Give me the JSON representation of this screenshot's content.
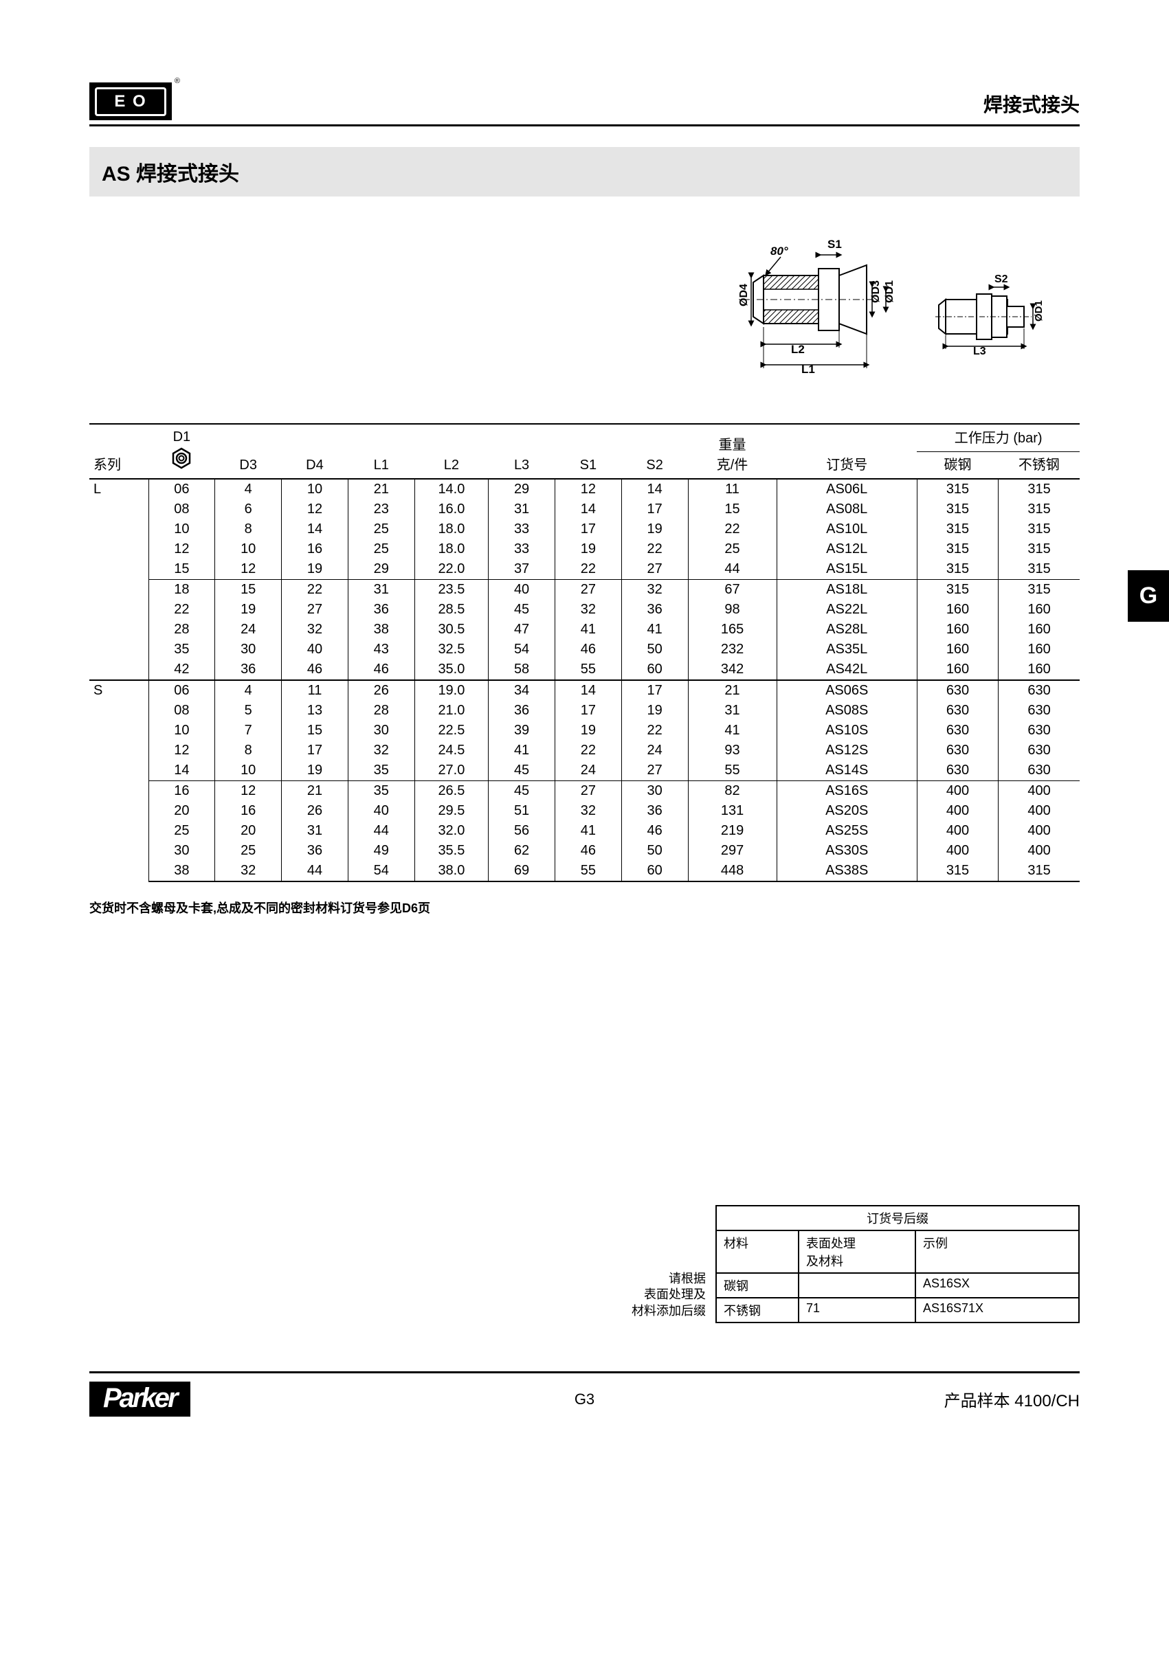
{
  "header": {
    "logo_text": "E O",
    "right_title": "焊接式接头"
  },
  "title": "AS 焊接式接头",
  "side_tab": "G",
  "diagram_labels": {
    "angle": "80°",
    "s1": "S1",
    "s2": "S2",
    "d1": "ØD1",
    "d3": "ØD3",
    "d4": "ØD4",
    "l1": "L1",
    "l2": "L2",
    "l3": "L3"
  },
  "table": {
    "headers": {
      "series": "系列",
      "d1": "D1",
      "d3": "D3",
      "d4": "D4",
      "l1": "L1",
      "l2": "L2",
      "l3": "L3",
      "s1": "S1",
      "s2": "S2",
      "weight_line1": "重量",
      "weight_line2": "克/件",
      "order": "订货号",
      "pressure_title": "工作压力 (bar)",
      "pressure_carbon": "碳钢",
      "pressure_ss": "不锈钢"
    },
    "groups": [
      {
        "series": "L",
        "subgroups": [
          {
            "rows": [
              {
                "d1": "06",
                "d3": "4",
                "d4": "10",
                "l1": "21",
                "l2": "14.0",
                "l3": "29",
                "s1": "12",
                "s2": "14",
                "wt": "11",
                "order": "AS06L",
                "pc": "315",
                "ps": "315"
              },
              {
                "d1": "08",
                "d3": "6",
                "d4": "12",
                "l1": "23",
                "l2": "16.0",
                "l3": "31",
                "s1": "14",
                "s2": "17",
                "wt": "15",
                "order": "AS08L",
                "pc": "315",
                "ps": "315"
              },
              {
                "d1": "10",
                "d3": "8",
                "d4": "14",
                "l1": "25",
                "l2": "18.0",
                "l3": "33",
                "s1": "17",
                "s2": "19",
                "wt": "22",
                "order": "AS10L",
                "pc": "315",
                "ps": "315"
              },
              {
                "d1": "12",
                "d3": "10",
                "d4": "16",
                "l1": "25",
                "l2": "18.0",
                "l3": "33",
                "s1": "19",
                "s2": "22",
                "wt": "25",
                "order": "AS12L",
                "pc": "315",
                "ps": "315"
              },
              {
                "d1": "15",
                "d3": "12",
                "d4": "19",
                "l1": "29",
                "l2": "22.0",
                "l3": "37",
                "s1": "22",
                "s2": "27",
                "wt": "44",
                "order": "AS15L",
                "pc": "315",
                "ps": "315"
              }
            ]
          },
          {
            "rows": [
              {
                "d1": "18",
                "d3": "15",
                "d4": "22",
                "l1": "31",
                "l2": "23.5",
                "l3": "40",
                "s1": "27",
                "s2": "32",
                "wt": "67",
                "order": "AS18L",
                "pc": "315",
                "ps": "315"
              },
              {
                "d1": "22",
                "d3": "19",
                "d4": "27",
                "l1": "36",
                "l2": "28.5",
                "l3": "45",
                "s1": "32",
                "s2": "36",
                "wt": "98",
                "order": "AS22L",
                "pc": "160",
                "ps": "160"
              },
              {
                "d1": "28",
                "d3": "24",
                "d4": "32",
                "l1": "38",
                "l2": "30.5",
                "l3": "47",
                "s1": "41",
                "s2": "41",
                "wt": "165",
                "order": "AS28L",
                "pc": "160",
                "ps": "160"
              },
              {
                "d1": "35",
                "d3": "30",
                "d4": "40",
                "l1": "43",
                "l2": "32.5",
                "l3": "54",
                "s1": "46",
                "s2": "50",
                "wt": "232",
                "order": "AS35L",
                "pc": "160",
                "ps": "160"
              },
              {
                "d1": "42",
                "d3": "36",
                "d4": "46",
                "l1": "46",
                "l2": "35.0",
                "l3": "58",
                "s1": "55",
                "s2": "60",
                "wt": "342",
                "order": "AS42L",
                "pc": "160",
                "ps": "160"
              }
            ]
          }
        ]
      },
      {
        "series": "S",
        "subgroups": [
          {
            "rows": [
              {
                "d1": "06",
                "d3": "4",
                "d4": "11",
                "l1": "26",
                "l2": "19.0",
                "l3": "34",
                "s1": "14",
                "s2": "17",
                "wt": "21",
                "order": "AS06S",
                "pc": "630",
                "ps": "630"
              },
              {
                "d1": "08",
                "d3": "5",
                "d4": "13",
                "l1": "28",
                "l2": "21.0",
                "l3": "36",
                "s1": "17",
                "s2": "19",
                "wt": "31",
                "order": "AS08S",
                "pc": "630",
                "ps": "630"
              },
              {
                "d1": "10",
                "d3": "7",
                "d4": "15",
                "l1": "30",
                "l2": "22.5",
                "l3": "39",
                "s1": "19",
                "s2": "22",
                "wt": "41",
                "order": "AS10S",
                "pc": "630",
                "ps": "630"
              },
              {
                "d1": "12",
                "d3": "8",
                "d4": "17",
                "l1": "32",
                "l2": "24.5",
                "l3": "41",
                "s1": "22",
                "s2": "24",
                "wt": "93",
                "order": "AS12S",
                "pc": "630",
                "ps": "630"
              },
              {
                "d1": "14",
                "d3": "10",
                "d4": "19",
                "l1": "35",
                "l2": "27.0",
                "l3": "45",
                "s1": "24",
                "s2": "27",
                "wt": "55",
                "order": "AS14S",
                "pc": "630",
                "ps": "630"
              }
            ]
          },
          {
            "rows": [
              {
                "d1": "16",
                "d3": "12",
                "d4": "21",
                "l1": "35",
                "l2": "26.5",
                "l3": "45",
                "s1": "27",
                "s2": "30",
                "wt": "82",
                "order": "AS16S",
                "pc": "400",
                "ps": "400"
              },
              {
                "d1": "20",
                "d3": "16",
                "d4": "26",
                "l1": "40",
                "l2": "29.5",
                "l3": "51",
                "s1": "32",
                "s2": "36",
                "wt": "131",
                "order": "AS20S",
                "pc": "400",
                "ps": "400"
              },
              {
                "d1": "25",
                "d3": "20",
                "d4": "31",
                "l1": "44",
                "l2": "32.0",
                "l3": "56",
                "s1": "41",
                "s2": "46",
                "wt": "219",
                "order": "AS25S",
                "pc": "400",
                "ps": "400"
              },
              {
                "d1": "30",
                "d3": "25",
                "d4": "36",
                "l1": "49",
                "l2": "35.5",
                "l3": "62",
                "s1": "46",
                "s2": "50",
                "wt": "297",
                "order": "AS30S",
                "pc": "400",
                "ps": "400"
              },
              {
                "d1": "38",
                "d3": "32",
                "d4": "44",
                "l1": "54",
                "l2": "38.0",
                "l3": "69",
                "s1": "55",
                "s2": "60",
                "wt": "448",
                "order": "AS38S",
                "pc": "315",
                "ps": "315"
              }
            ]
          }
        ]
      }
    ]
  },
  "footnote": "交货时不含螺母及卡套,总成及不同的密封材料订货号参见D6页",
  "suffix": {
    "side_label_l1": "请根据",
    "side_label_l2": "表面处理及",
    "side_label_l3": "材料添加后缀",
    "title": "订货号后缀",
    "h_material": "材料",
    "h_surface_l1": "表面处理",
    "h_surface_l2": "及材料",
    "h_example": "示例",
    "rows": [
      {
        "material": "碳钢",
        "surface": "",
        "example": "AS16SX"
      },
      {
        "material": "不锈钢",
        "surface": "71",
        "example": "AS16S71X"
      }
    ]
  },
  "footer": {
    "logo": "Parker",
    "page": "G3",
    "right": "产品样本 4100/CH"
  }
}
